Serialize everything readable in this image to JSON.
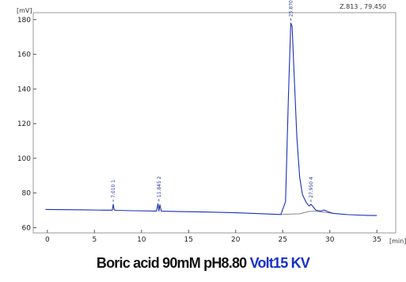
{
  "chart_data": {
    "type": "line",
    "xlabel": "[min]",
    "ylabel": "[mV]",
    "xlim": [
      -1.5,
      37
    ],
    "ylim": [
      57,
      184
    ],
    "xticks": [
      0,
      5,
      10,
      15,
      20,
      25,
      30,
      35
    ],
    "yticks": [
      60,
      80,
      100,
      120,
      140,
      160,
      180
    ],
    "cursor_readout": "Z.813 , 79.450",
    "grid": false,
    "line_color": "#1a2fb8",
    "baseline_color": "#888888",
    "series": [
      {
        "x": [
          -0.2,
          2,
          4,
          6,
          6.9,
          7.0,
          7.1,
          7.3,
          9,
          11.6,
          11.75,
          11.85,
          11.95,
          12.1,
          14,
          17,
          20,
          23,
          24.8,
          25.3,
          25.6,
          25.85,
          26.0,
          26.2,
          26.5,
          26.8,
          27.1,
          27.5,
          27.8,
          28.0,
          28.2,
          28.5,
          29.0,
          29.4,
          29.8,
          30.3,
          31,
          32,
          33,
          34,
          35
        ],
        "y": [
          70.5,
          70.4,
          70.3,
          70.1,
          70.1,
          73.5,
          70.2,
          70.0,
          69.8,
          69.6,
          73.8,
          69.6,
          73.2,
          69.5,
          69.3,
          69.0,
          68.6,
          68.0,
          67.6,
          75,
          135,
          178,
          176,
          150,
          112,
          89,
          79,
          74.5,
          72.5,
          73.5,
          72.3,
          70.2,
          69.5,
          70.2,
          69.2,
          68.3,
          67.9,
          67.5,
          67.3,
          67.1,
          67.0
        ]
      }
    ],
    "baseline": {
      "x": [
        24.8,
        26.8,
        27.8,
        28.5,
        30.3
      ],
      "y": [
        67.6,
        68.0,
        69.4,
        69.5,
        68.3
      ]
    },
    "peaks": [
      {
        "number": "1",
        "retention_time": "7.010",
        "x": 7.0,
        "apex": 73.5
      },
      {
        "number": "2",
        "retention_time": "11.845",
        "x": 11.85,
        "apex": 73.8
      },
      {
        "number": "3",
        "retention_time": "25.870",
        "x": 25.87,
        "apex": 178
      },
      {
        "number": "4",
        "retention_time": "27.950",
        "x": 28.0,
        "apex": 73.5
      }
    ]
  },
  "caption": {
    "main": "Boric acid 90mM pH8.80 ",
    "volt": "Volt15 KV"
  }
}
